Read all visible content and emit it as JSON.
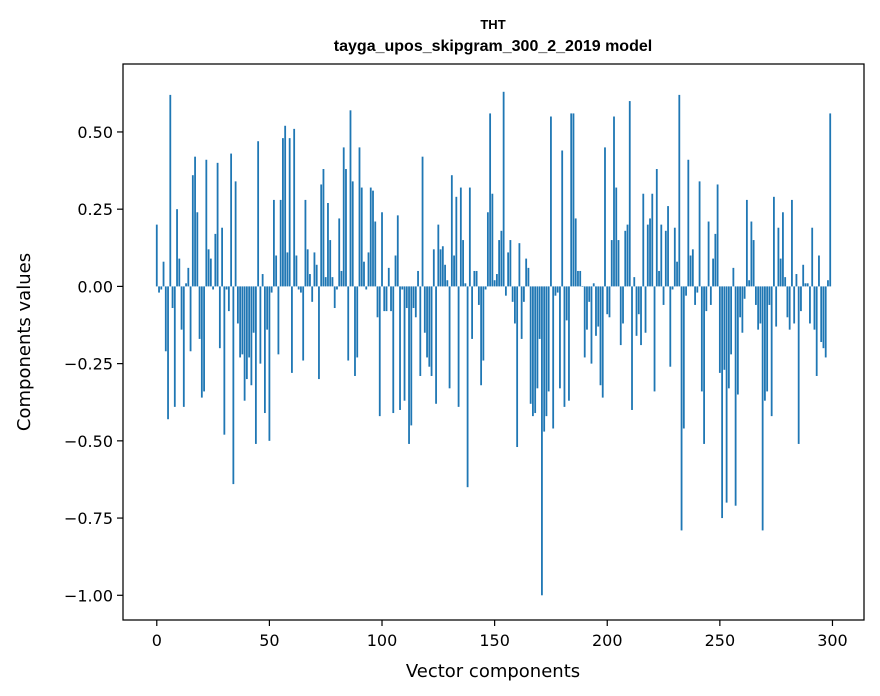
{
  "chart_data": {
    "type": "bar",
    "title": "THT",
    "subtitle": "tayga_upos_skipgram_300_2_2019 model",
    "xlabel": "Vector components",
    "ylabel": "Components values",
    "xlim": [
      -15,
      314
    ],
    "ylim": [
      -1.08,
      0.72
    ],
    "xticks": [
      0,
      50,
      100,
      150,
      200,
      250,
      300
    ],
    "yticks": [
      -1.0,
      -0.75,
      -0.5,
      -0.25,
      0.0,
      0.25,
      0.5
    ],
    "ytick_labels": [
      "−1.00",
      "−0.75",
      "−0.50",
      "−0.25",
      "0.00",
      "0.25",
      "0.50"
    ],
    "bar_color": "#1f77b4",
    "grid": false,
    "legend": "none",
    "values": [
      0.2,
      -0.02,
      -0.01,
      0.08,
      -0.21,
      -0.43,
      0.62,
      -0.07,
      -0.39,
      0.25,
      0.09,
      -0.14,
      -0.39,
      0.01,
      0.06,
      -0.21,
      0.36,
      0.42,
      0.24,
      -0.17,
      -0.36,
      -0.34,
      0.41,
      0.12,
      0.09,
      -0.01,
      0.17,
      0.4,
      -0.2,
      0.19,
      -0.48,
      -0.01,
      -0.08,
      0.43,
      -0.64,
      0.34,
      -0.12,
      -0.23,
      -0.22,
      -0.37,
      -0.3,
      -0.23,
      -0.32,
      -0.15,
      -0.51,
      0.47,
      -0.25,
      0.04,
      -0.41,
      -0.14,
      -0.5,
      -0.02,
      0.28,
      0.1,
      -0.22,
      0.28,
      0.48,
      0.52,
      0.11,
      0.48,
      -0.28,
      0.51,
      0.1,
      -0.01,
      -0.02,
      -0.24,
      0.28,
      0.12,
      0.04,
      -0.05,
      0.11,
      0.07,
      -0.3,
      0.33,
      0.38,
      0.03,
      0.27,
      0.15,
      0.03,
      -0.07,
      -0.01,
      0.22,
      0.05,
      0.45,
      0.38,
      -0.24,
      0.57,
      0.34,
      -0.29,
      -0.23,
      0.45,
      0.32,
      0.08,
      -0.01,
      0.11,
      0.32,
      0.31,
      0.21,
      -0.1,
      -0.42,
      0.24,
      -0.08,
      -0.08,
      0.06,
      -0.08,
      -0.41,
      0.1,
      0.23,
      -0.4,
      -0.01,
      -0.37,
      -0.07,
      -0.51,
      -0.45,
      -0.07,
      -0.1,
      0.05,
      -0.29,
      0.42,
      -0.15,
      -0.23,
      -0.26,
      -0.29,
      0.12,
      -0.38,
      0.2,
      0.12,
      0.13,
      0.07,
      0.02,
      -0.33,
      0.36,
      0.1,
      0.29,
      -0.39,
      0.32,
      0.15,
      0.01,
      -0.65,
      0.32,
      -0.17,
      0.05,
      0.05,
      -0.06,
      -0.32,
      -0.24,
      -0.01,
      0.24,
      0.56,
      0.3,
      0.02,
      0.04,
      0.15,
      0.18,
      0.63,
      -0.03,
      0.11,
      0.15,
      -0.05,
      -0.12,
      -0.52,
      0.14,
      -0.17,
      -0.05,
      0.09,
      0.06,
      -0.38,
      -0.42,
      -0.41,
      -0.33,
      -0.17,
      -1.0,
      -0.47,
      -0.42,
      -0.34,
      0.55,
      -0.46,
      -0.03,
      -0.02,
      -0.33,
      0.44,
      -0.39,
      -0.11,
      -0.37,
      0.56,
      0.56,
      0.22,
      0.05,
      0.05,
      0.0,
      -0.23,
      -0.14,
      -0.05,
      -0.25,
      0.01,
      -0.16,
      -0.13,
      -0.32,
      -0.36,
      0.45,
      -0.09,
      -0.1,
      0.15,
      0.55,
      0.32,
      0.15,
      -0.19,
      -0.12,
      0.18,
      0.2,
      0.6,
      -0.4,
      0.03,
      -0.16,
      -0.09,
      -0.19,
      0.3,
      -0.15,
      0.2,
      0.22,
      0.3,
      -0.34,
      0.38,
      0.05,
      0.2,
      -0.06,
      0.18,
      0.26,
      -0.26,
      -0.01,
      0.19,
      0.08,
      0.62,
      -0.79,
      -0.46,
      -0.03,
      0.41,
      0.1,
      0.12,
      -0.06,
      -0.02,
      0.34,
      -0.34,
      -0.51,
      -0.08,
      0.21,
      -0.06,
      0.09,
      0.17,
      0.33,
      -0.28,
      -0.75,
      -0.27,
      -0.7,
      -0.33,
      -0.22,
      0.06,
      -0.71,
      -0.35,
      -0.1,
      -0.15,
      -0.04,
      0.28,
      0.02,
      0.21,
      0.15,
      -0.06,
      -0.14,
      -0.12,
      -0.79,
      -0.37,
      -0.34,
      -0.06,
      -0.42,
      0.29,
      -0.13,
      0.19,
      0.09,
      0.24,
      0.03,
      -0.1,
      -0.14,
      0.28,
      -0.12,
      0.04,
      -0.51,
      -0.08,
      0.07,
      0.01,
      0.01,
      -0.12,
      0.19,
      -0.14,
      -0.29,
      0.1,
      -0.18,
      -0.2,
      -0.23,
      0.02,
      0.56
    ]
  }
}
